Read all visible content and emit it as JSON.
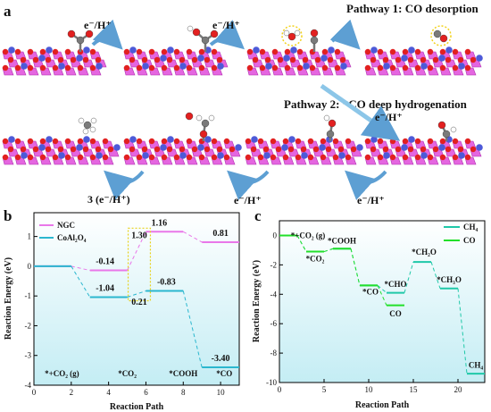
{
  "panel_a": {
    "panel_label": "a",
    "pathway1": "Pathway 1: CO desorption",
    "pathway2": "Pathway 2: *CO deep hydrogenation",
    "step_label": "e⁻/H⁺",
    "step_label_3": "3 (e⁻/H⁺)"
  },
  "chart_data": [
    {
      "panel_label": "b",
      "type": "line",
      "step_diagram": true,
      "xlabel": "Reaction Path",
      "ylabel": "Reaction Energy (eV)",
      "xlim": [
        0,
        11
      ],
      "ylim": [
        -4,
        1.8
      ],
      "xticks": [
        0,
        2,
        4,
        6,
        8,
        10
      ],
      "yticks": [
        -4,
        -3,
        -2,
        -1,
        0,
        1
      ],
      "legend": "top-left",
      "series": [
        {
          "name": "NGC",
          "color": "#e977e9",
          "levels": [
            {
              "x0": 0,
              "x1": 2,
              "y": 0
            },
            {
              "x0": 3,
              "x1": 5,
              "y": -0.14,
              "label": "-0.14"
            },
            {
              "x0": 6,
              "x1": 8,
              "y": 1.16,
              "label": "1.16"
            },
            {
              "x0": 9,
              "x1": 11,
              "y": 0.81,
              "label": "0.81"
            }
          ]
        },
        {
          "name": "CoAl₂O₄",
          "color": "#2bb7cf",
          "levels": [
            {
              "x0": 0,
              "x1": 2,
              "y": 0
            },
            {
              "x0": 3,
              "x1": 5,
              "y": -1.04,
              "label": "-1.04"
            },
            {
              "x0": 6,
              "x1": 8,
              "y": -0.83,
              "label": "-0.83"
            },
            {
              "x0": 9,
              "x1": 11,
              "y": -3.4,
              "label": "-3.40"
            }
          ]
        }
      ],
      "barriers": [
        {
          "label": "1.30",
          "color": "#e01010"
        },
        {
          "label": "0.21",
          "color": "#1438d8"
        }
      ],
      "step_labels": [
        "*+CO₂ (g)",
        "*CO₂",
        "*COOH",
        "*CO"
      ]
    },
    {
      "panel_label": "c",
      "type": "line",
      "step_diagram": true,
      "xlabel": "Reaction Path",
      "ylabel": "Reaction Energy (eV)",
      "xlim": [
        0,
        23
      ],
      "ylim": [
        -10,
        1
      ],
      "xticks": [
        0,
        5,
        10,
        15,
        20
      ],
      "yticks": [
        -10,
        -8,
        -6,
        -4,
        -2,
        0
      ],
      "legend": "top-right",
      "series": [
        {
          "name": "CH₄",
          "color": "#1fc8a8",
          "levels": [
            {
              "x0": 0,
              "x1": 2,
              "y": 0
            },
            {
              "x0": 3,
              "x1": 5,
              "y": -1.1
            },
            {
              "x0": 6,
              "x1": 8,
              "y": -0.9
            },
            {
              "x0": 9,
              "x1": 11,
              "y": -3.4
            },
            {
              "x0": 12,
              "x1": 14,
              "y": -3.9
            },
            {
              "x0": 15,
              "x1": 17,
              "y": -1.8
            },
            {
              "x0": 18,
              "x1": 20,
              "y": -3.6
            },
            {
              "x0": 21,
              "x1": 23,
              "y": -9.4
            }
          ]
        },
        {
          "name": "CO",
          "color": "#22e02a",
          "levels": [
            {
              "x0": 0,
              "x1": 2,
              "y": 0
            },
            {
              "x0": 3,
              "x1": 5,
              "y": -1.1
            },
            {
              "x0": 6,
              "x1": 8,
              "y": -0.9
            },
            {
              "x0": 9,
              "x1": 11,
              "y": -3.4
            },
            {
              "x0": 12,
              "x1": 14,
              "y": -4.75
            }
          ]
        }
      ],
      "level_labels": [
        "*+CO₂ (g)",
        "*CO₂",
        "*COOH",
        "*CO",
        "*CHO",
        "CO",
        "*CH₂O",
        "*CH₃O",
        "CH₄"
      ]
    }
  ]
}
